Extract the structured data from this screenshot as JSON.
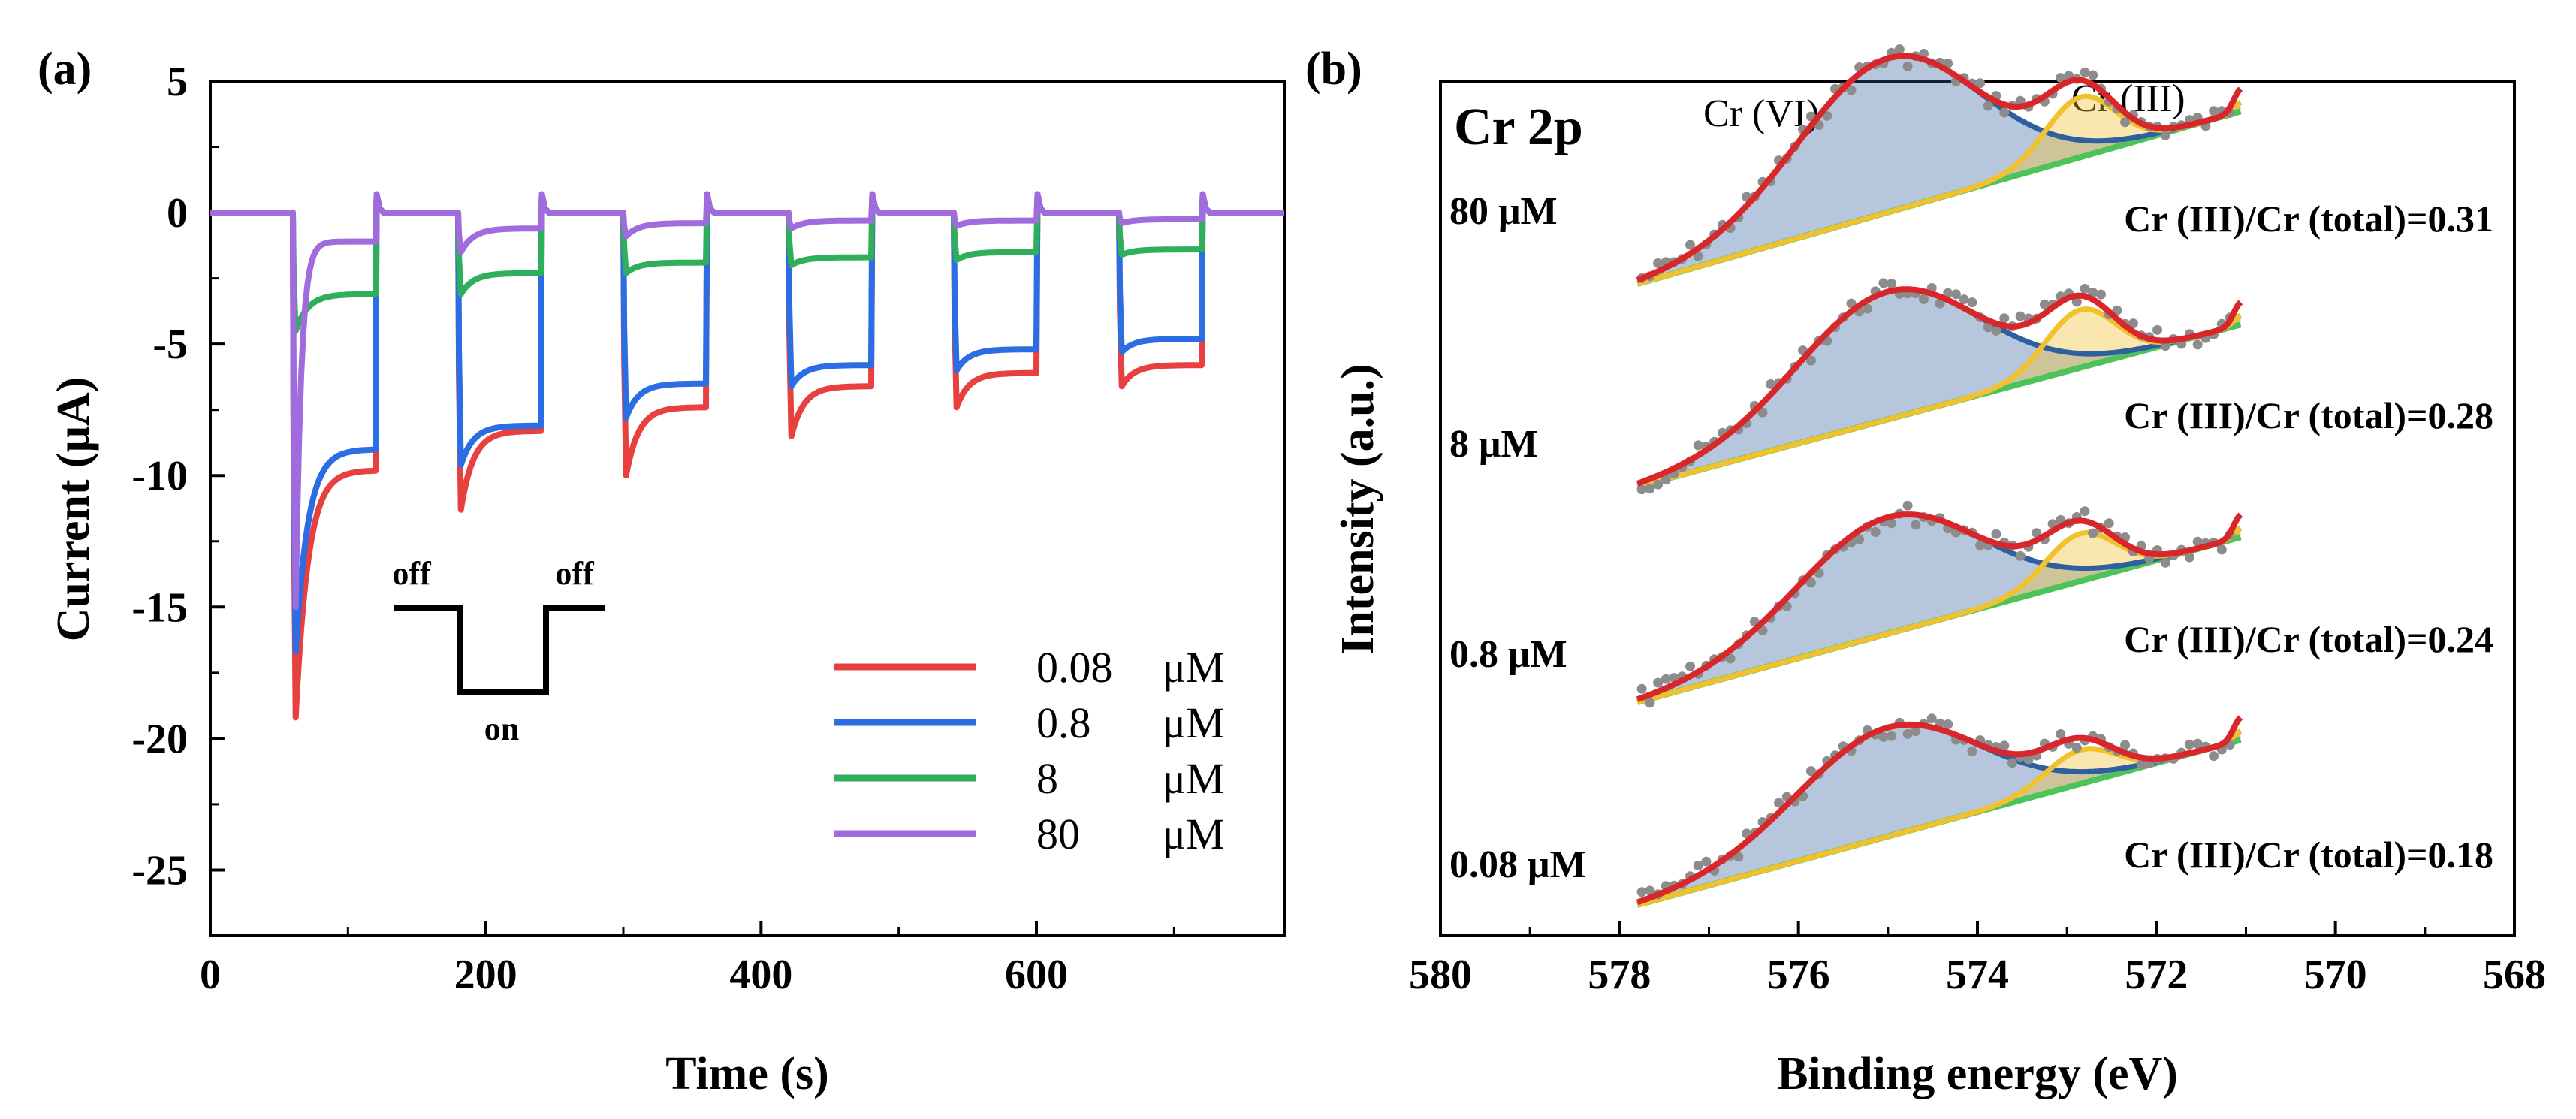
{
  "chart_data": [
    {
      "panel_label": "(a)",
      "type": "line",
      "xlabel": "Time (s)",
      "ylabel": "Current (μA)",
      "xlim": [
        0,
        780
      ],
      "ylim": [
        -27.5,
        5
      ],
      "xticks": [
        0,
        200,
        400,
        600
      ],
      "xtick_labels": [
        "0",
        "200",
        "400",
        "600"
      ],
      "yticks": [
        5,
        0,
        -5,
        -10,
        -15,
        -20,
        -25
      ],
      "ytick_labels": [
        "5",
        "0",
        "-5",
        "-10",
        "-15",
        "-20",
        "-25"
      ],
      "light_cycle": {
        "on_start": [
          60,
          180,
          300,
          420,
          540,
          660
        ],
        "on_duration": 60
      },
      "inset": {
        "left_label": "off",
        "right_label": "off",
        "bottom_label": "on"
      },
      "series": [
        {
          "name": "0.08 μM",
          "conc": "0.08",
          "unit": "μM",
          "color": "#e83f3f",
          "on_peaks": [
            -19.2,
            -11.3,
            -10.0,
            -8.5,
            -7.4,
            -6.6
          ],
          "on_ends": [
            -9.8,
            -8.3,
            -7.4,
            -6.6,
            -6.1,
            -5.8
          ]
        },
        {
          "name": "0.8 μM",
          "conc": "0.8",
          "unit": "μM",
          "color": "#2b6de2",
          "on_peaks": [
            -16.7,
            -9.6,
            -7.8,
            -6.6,
            -6.0,
            -5.3
          ],
          "on_ends": [
            -9.0,
            -8.1,
            -6.5,
            -5.8,
            -5.2,
            -4.8
          ]
        },
        {
          "name": "8 μM",
          "conc": "8",
          "unit": "μM",
          "color": "#2fae5c",
          "on_peaks": [
            -4.5,
            -3.1,
            -2.3,
            -2.0,
            -1.8,
            -1.6
          ],
          "on_ends": [
            -3.1,
            -2.3,
            -1.9,
            -1.7,
            -1.5,
            -1.4
          ]
        },
        {
          "name": "80 μM",
          "conc": "80",
          "unit": "μM",
          "color": "#a06cdd",
          "on_peaks": [
            -15.0,
            -1.5,
            -0.9,
            -0.6,
            -0.5,
            -0.4
          ],
          "on_ends": [
            -1.1,
            -0.6,
            -0.4,
            -0.3,
            -0.3,
            -0.25
          ]
        }
      ]
    },
    {
      "panel_label": "(b)",
      "type": "line",
      "title": "Cr 2p",
      "xlabel": "Binding energy (eV)",
      "ylabel": "Intensity (a.u.)",
      "xlim": [
        580,
        568
      ],
      "xticks": [
        580,
        578,
        576,
        574,
        572,
        570,
        568
      ],
      "xtick_labels": [
        "580",
        "578",
        "576",
        "574",
        "572",
        "570",
        "568"
      ],
      "peak_labels": [
        "Cr (VI)",
        "Cr (III)"
      ],
      "components": {
        "envelope": "#d8262a",
        "cr6": "#2e5f9e",
        "cr3": "#f2c12e",
        "background": "#4cc45a",
        "raw": "#8c8c8c"
      },
      "spectra": [
        {
          "concentration": "80 μM",
          "ratio_text": "Cr (III)/Cr (total)=0.31",
          "ratio": 0.31
        },
        {
          "concentration": "8 μM",
          "ratio_text": "Cr (III)/Cr (total)=0.28",
          "ratio": 0.28
        },
        {
          "concentration": "0.8 μM",
          "ratio_text": "Cr (III)/Cr (total)=0.24",
          "ratio": 0.24
        },
        {
          "concentration": "0.08 μM",
          "ratio_text": "Cr (III)/Cr (total)=0.18",
          "ratio": 0.18
        }
      ]
    }
  ]
}
